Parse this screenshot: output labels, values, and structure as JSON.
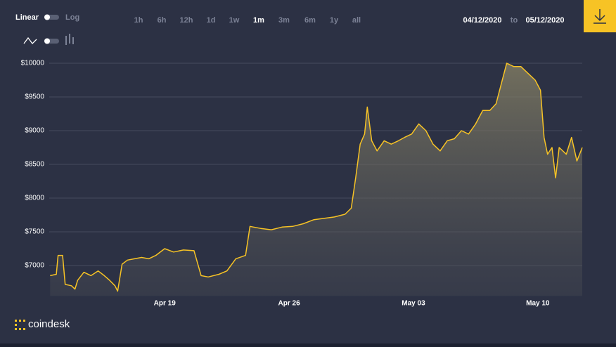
{
  "ui": {
    "scale_linear": "Linear",
    "scale_log": "Log",
    "ranges": [
      "1h",
      "6h",
      "12h",
      "1d",
      "1w",
      "1m",
      "3m",
      "6m",
      "1y",
      "all"
    ],
    "active_range": 5,
    "date_from": "04/12/2020",
    "date_sep": "to",
    "date_to": "05/12/2020",
    "brand": "coindesk"
  },
  "chart_data": {
    "type": "line",
    "color": "#f7c325",
    "grid": true,
    "x": [
      0.55,
      0.9,
      1.0,
      1.25,
      1.4,
      1.75,
      1.95,
      2.1,
      2.45,
      2.85,
      3.25,
      3.6,
      3.9,
      4.2,
      4.35,
      4.6,
      4.9,
      5.3,
      5.7,
      6.1,
      6.5,
      7.0,
      7.5,
      8.05,
      8.65,
      9.05,
      9.45,
      10.05,
      10.5,
      11.0,
      11.55,
      11.8,
      12.4,
      13.0,
      13.6,
      14.2,
      14.8,
      15.4,
      16.0,
      16.55,
      17.15,
      17.5,
      17.75,
      18.0,
      18.25,
      18.4,
      18.65,
      18.95,
      19.35,
      19.75,
      20.15,
      20.5,
      20.9,
      21.3,
      21.7,
      22.1,
      22.5,
      22.9,
      23.3,
      23.7,
      24.1,
      24.5,
      24.9,
      25.3,
      25.65,
      25.95,
      26.25,
      26.65,
      27.05,
      27.45,
      27.85,
      28.15,
      28.35,
      28.55,
      28.8,
      29.0,
      29.2,
      29.6,
      29.9,
      30.2,
      30.5
    ],
    "values": [
      6850,
      6870,
      7150,
      7150,
      6720,
      6700,
      6650,
      6780,
      6900,
      6850,
      6920,
      6850,
      6780,
      6700,
      6620,
      7020,
      7080,
      7100,
      7120,
      7100,
      7150,
      7250,
      7200,
      7230,
      7220,
      6850,
      6830,
      6870,
      6920,
      7100,
      7150,
      7580,
      7550,
      7530,
      7570,
      7580,
      7620,
      7680,
      7700,
      7720,
      7760,
      7850,
      8300,
      8800,
      8950,
      9350,
      8850,
      8700,
      8850,
      8800,
      8850,
      8900,
      8950,
      9100,
      9000,
      8800,
      8700,
      8850,
      8880,
      9000,
      8950,
      9100,
      9300,
      9300,
      9400,
      9700,
      10000,
      9950,
      9950,
      9850,
      9750,
      9600,
      8900,
      8650,
      8750,
      8300,
      8750,
      8650,
      8900,
      8550,
      8750
    ],
    "xlim": [
      0.5,
      30.5
    ],
    "xticks": [
      {
        "value": 7,
        "label": "Apr 19"
      },
      {
        "value": 14,
        "label": "Apr 26"
      },
      {
        "value": 21,
        "label": "May 03"
      },
      {
        "value": 28,
        "label": "May 10"
      }
    ],
    "ylim": [
      6550,
      10150
    ],
    "yticks": [
      {
        "value": 7000,
        "label": "$7000"
      },
      {
        "value": 7500,
        "label": "$7500"
      },
      {
        "value": 8000,
        "label": "$8000"
      },
      {
        "value": 8500,
        "label": "$8500"
      },
      {
        "value": 9000,
        "label": "$9000"
      },
      {
        "value": 9500,
        "label": "$9500"
      },
      {
        "value": 10000,
        "label": "$10000"
      }
    ]
  }
}
